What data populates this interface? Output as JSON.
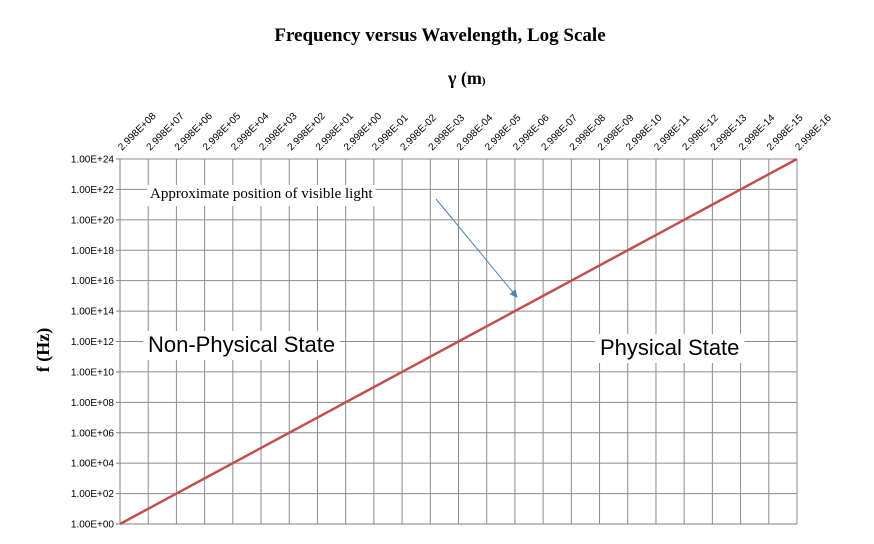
{
  "chart_data": {
    "type": "line",
    "title": "Frequency versus Wavelength, Log Scale",
    "xlabel_main": "γ (m",
    "xlabel_paren": ")",
    "ylabel": "f (Hz)",
    "x_categories": [
      "2.998E+08",
      "2.998E+07",
      "2.998E+06",
      "2.998E+05",
      "2.998E+04",
      "2.998E+03",
      "2.998E+02",
      "2.998E+01",
      "2.998E+00",
      "2.998E-01",
      "2.998E-02",
      "2.998E-03",
      "2.998E-04",
      "2.998E-05",
      "2.998E-06",
      "2.998E-07",
      "2.998E-08",
      "2.998E-09",
      "2.998E-10",
      "2.998E-11",
      "2.998E-12",
      "2.998E-13",
      "2.998E-14",
      "2.998E-15",
      "2.998E-16"
    ],
    "y_ticks": [
      "1.00E+00",
      "1.00E+02",
      "1.00E+04",
      "1.00E+06",
      "1.00E+08",
      "1.00E+10",
      "1.00E+12",
      "1.00E+14",
      "1.00E+16",
      "1.00E+18",
      "1.00E+20",
      "1.00E+22",
      "1.00E+24"
    ],
    "y_log_range": [
      0,
      24
    ],
    "series": [
      {
        "name": "Frequency",
        "color": "#c0504d",
        "log10_values": [
          0,
          1,
          2,
          3,
          4,
          5,
          6,
          7,
          8,
          9,
          10,
          11,
          12,
          13,
          14,
          15,
          16,
          17,
          18,
          19,
          20,
          21,
          22,
          23,
          24
        ]
      }
    ],
    "grid": true,
    "annotations": {
      "visible_light": "Approximate position of visible light",
      "visible_light_category_index": 14,
      "left_region": "Non-Physical State",
      "right_region": "Physical State",
      "arrow_color": "#4f81bd"
    }
  }
}
